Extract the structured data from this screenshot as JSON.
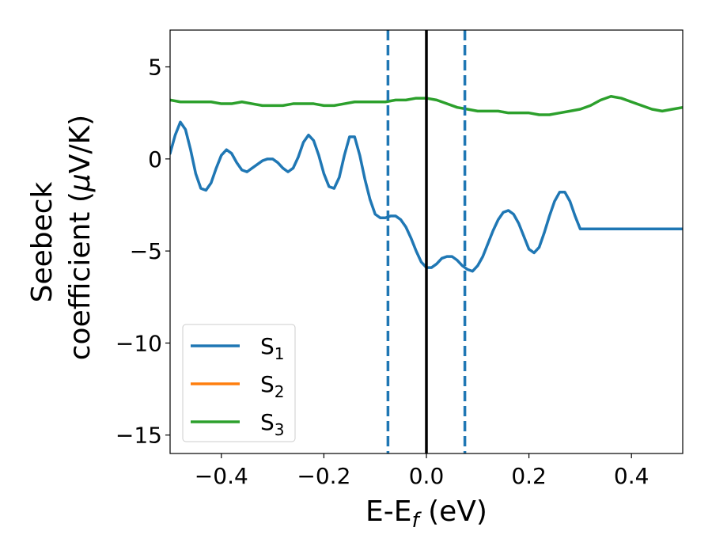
{
  "chart_data": {
    "type": "line",
    "title": "",
    "xlabel": "E-E",
    "xlabel_sub": "f",
    "xlabel_unit": " (eV)",
    "ylabel_line1": "Seebeck",
    "ylabel_line2": "coefficient  (",
    "ylabel_mu": "μ",
    "ylabel_unit": "V/K)",
    "xlim": [
      -0.5,
      0.5
    ],
    "ylim": [
      -16,
      7
    ],
    "xticks": [
      -0.4,
      -0.2,
      0.0,
      0.2,
      0.4
    ],
    "xtick_labels": [
      "−0.4",
      "−0.2",
      "0.0",
      "0.2",
      "0.4"
    ],
    "yticks": [
      5,
      0,
      -5,
      -10,
      -15
    ],
    "ytick_labels": [
      "5",
      "0",
      "−5",
      "−10",
      "−15"
    ],
    "legend_position": "lower-left",
    "vlines": [
      {
        "x": -0.075,
        "style": "dashed",
        "color": "#1f77b4"
      },
      {
        "x": 0.0,
        "style": "solid",
        "color": "#000000"
      },
      {
        "x": 0.075,
        "style": "dashed",
        "color": "#1f77b4"
      }
    ],
    "series": [
      {
        "name": "S",
        "sub": "1",
        "color": "#1f77b4",
        "x": [
          -0.5,
          -0.49,
          -0.48,
          -0.47,
          -0.46,
          -0.45,
          -0.44,
          -0.43,
          -0.42,
          -0.41,
          -0.4,
          -0.39,
          -0.38,
          -0.37,
          -0.36,
          -0.35,
          -0.34,
          -0.33,
          -0.32,
          -0.31,
          -0.3,
          -0.29,
          -0.28,
          -0.27,
          -0.26,
          -0.25,
          -0.24,
          -0.23,
          -0.22,
          -0.21,
          -0.2,
          -0.19,
          -0.18,
          -0.17,
          -0.16,
          -0.15,
          -0.14,
          -0.13,
          -0.12,
          -0.11,
          -0.1,
          -0.09,
          -0.08,
          -0.07,
          -0.06,
          -0.05,
          -0.04,
          -0.03,
          -0.02,
          -0.01,
          0.0,
          0.01,
          0.02,
          0.03,
          0.04,
          0.05,
          0.06,
          0.07,
          0.08,
          0.09,
          0.1,
          0.11,
          0.12,
          0.13,
          0.14,
          0.15,
          0.16,
          0.17,
          0.18,
          0.19,
          0.2,
          0.21,
          0.22,
          0.23,
          0.24,
          0.25,
          0.26,
          0.27,
          0.28,
          0.29,
          0.3,
          0.31,
          0.32,
          0.33,
          0.34,
          0.35,
          0.36,
          0.37,
          0.38,
          0.39,
          0.4,
          0.41,
          0.42,
          0.43,
          0.44,
          0.45,
          0.46,
          0.47,
          0.48,
          0.49,
          0.5
        ],
        "y": [
          0.3,
          1.3,
          2.0,
          1.6,
          0.5,
          -0.8,
          -1.6,
          -1.7,
          -1.3,
          -0.5,
          0.2,
          0.5,
          0.3,
          -0.2,
          -0.6,
          -0.7,
          -0.5,
          -0.3,
          -0.1,
          0.0,
          0.0,
          -0.2,
          -0.5,
          -0.7,
          -0.5,
          0.1,
          0.9,
          1.3,
          1.0,
          0.2,
          -0.8,
          -1.5,
          -1.6,
          -1.0,
          0.2,
          1.2,
          1.2,
          0.2,
          -1.1,
          -2.2,
          -3.0,
          -3.2,
          -3.2,
          -3.1,
          -3.1,
          -3.3,
          -3.7,
          -4.3,
          -5.0,
          -5.6,
          -5.9,
          -5.9,
          -5.7,
          -5.4,
          -5.3,
          -5.3,
          -5.5,
          -5.8,
          -6.0,
          -6.1,
          -5.8,
          -5.3,
          -4.6,
          -3.9,
          -3.3,
          -2.9,
          -2.8,
          -3.0,
          -3.5,
          -4.2,
          -4.9,
          -5.1,
          -4.8,
          -4.0,
          -3.1,
          -2.3,
          -1.8,
          -1.8,
          -2.3,
          -3.1,
          -3.8,
          -3.8,
          -3.8,
          -3.8,
          -3.8,
          -3.8,
          -3.8,
          -3.8,
          -3.8,
          -3.8,
          -3.8,
          -3.8,
          -3.8,
          -3.8,
          -3.8,
          -3.8,
          -3.8,
          -3.8,
          -3.8,
          -3.8,
          -3.8
        ]
      },
      {
        "name": "S",
        "sub": "2",
        "color": "#ff7f0e",
        "x": [],
        "y": []
      },
      {
        "name": "S",
        "sub": "3",
        "color": "#2ca02c",
        "x": [
          -0.5,
          -0.48,
          -0.46,
          -0.44,
          -0.42,
          -0.4,
          -0.38,
          -0.36,
          -0.34,
          -0.32,
          -0.3,
          -0.28,
          -0.26,
          -0.24,
          -0.22,
          -0.2,
          -0.18,
          -0.16,
          -0.14,
          -0.12,
          -0.1,
          -0.08,
          -0.06,
          -0.04,
          -0.02,
          0.0,
          0.02,
          0.04,
          0.06,
          0.08,
          0.1,
          0.12,
          0.14,
          0.16,
          0.18,
          0.2,
          0.22,
          0.24,
          0.26,
          0.28,
          0.3,
          0.32,
          0.34,
          0.36,
          0.38,
          0.4,
          0.42,
          0.44,
          0.46,
          0.48,
          0.5
        ],
        "y": [
          3.2,
          3.1,
          3.1,
          3.1,
          3.1,
          3.0,
          3.0,
          3.1,
          3.0,
          2.9,
          2.9,
          2.9,
          3.0,
          3.0,
          3.0,
          2.9,
          2.9,
          3.0,
          3.1,
          3.1,
          3.1,
          3.1,
          3.2,
          3.2,
          3.3,
          3.3,
          3.2,
          3.0,
          2.8,
          2.7,
          2.6,
          2.6,
          2.6,
          2.5,
          2.5,
          2.5,
          2.4,
          2.4,
          2.5,
          2.6,
          2.7,
          2.9,
          3.2,
          3.4,
          3.3,
          3.1,
          2.9,
          2.7,
          2.6,
          2.7,
          2.8
        ]
      }
    ]
  }
}
